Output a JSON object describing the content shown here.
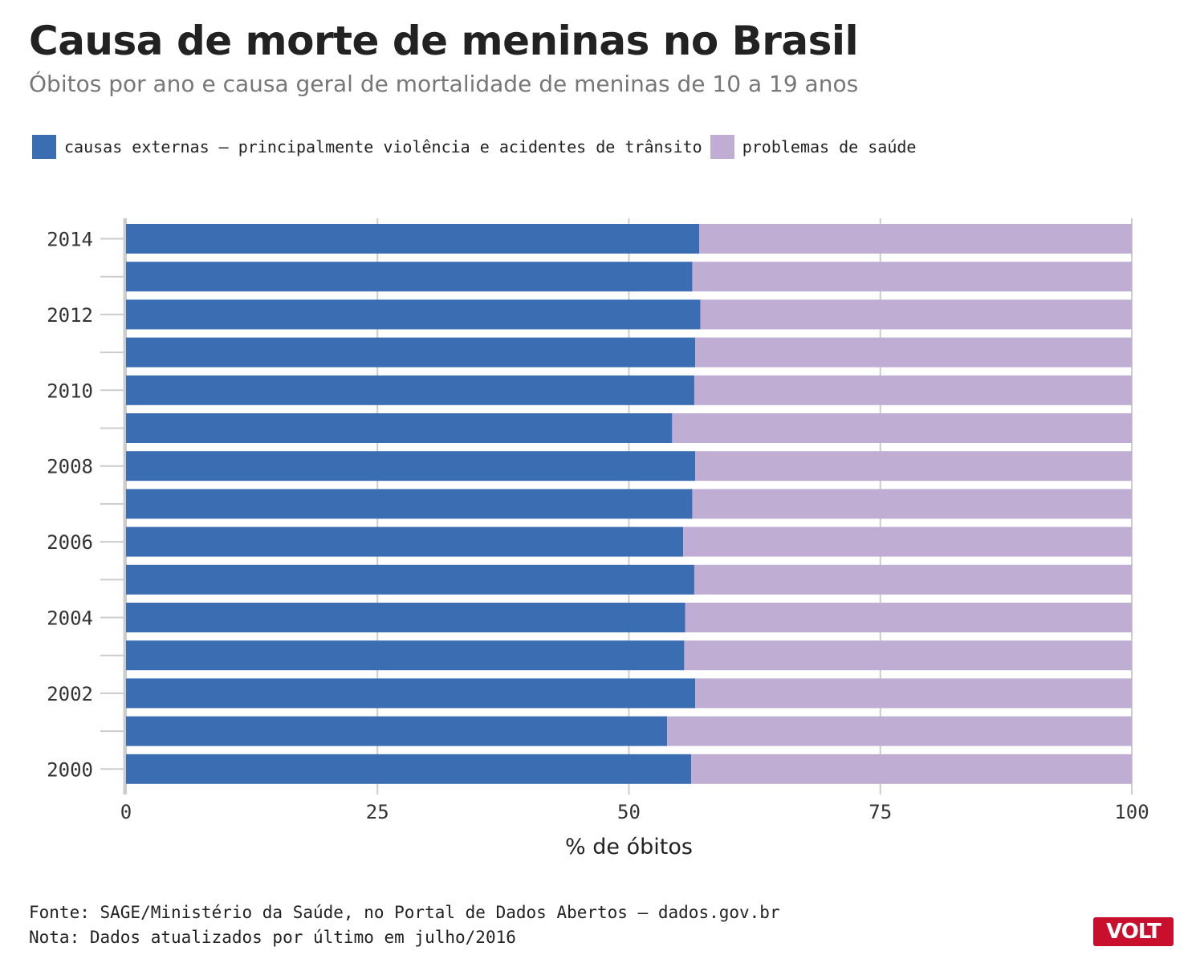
{
  "header": {
    "title": "Causa de morte de meninas no Brasil",
    "subtitle": "Óbitos por ano e causa geral de mortalidade de meninas de 10 a 19 anos"
  },
  "footer": {
    "source": "Fonte: SAGE/Ministério da Saúde, no Portal de Dados Abertos – dados.gov.br",
    "note": "Nota: Dados atualizados por último em julho/2016",
    "logo": "VOLT"
  },
  "colors": {
    "external": "#3a6db1",
    "health": "#bfadd4",
    "grid": "#cccccc"
  },
  "chart_data": {
    "type": "bar",
    "orientation": "horizontal",
    "stacked": true,
    "categories": [
      "2014",
      "2013",
      "2012",
      "2011",
      "2010",
      "2009",
      "2008",
      "2007",
      "2006",
      "2005",
      "2004",
      "2003",
      "2002",
      "2001",
      "2000"
    ],
    "y_tick_labels": [
      "2014",
      "",
      "2012",
      "",
      "2010",
      "",
      "2008",
      "",
      "2006",
      "",
      "2004",
      "",
      "2002",
      "",
      "2000"
    ],
    "series": [
      {
        "name": "causas externas – principalmente violência e acidentes de trânsito",
        "values": [
          57.0,
          56.3,
          57.1,
          56.6,
          56.5,
          54.3,
          56.6,
          56.3,
          55.4,
          56.5,
          55.6,
          55.5,
          56.6,
          53.8,
          56.2
        ]
      },
      {
        "name": "problemas de saúde",
        "values": [
          43.0,
          43.7,
          42.9,
          43.4,
          43.5,
          45.7,
          43.4,
          43.7,
          44.6,
          43.5,
          44.4,
          44.5,
          43.4,
          46.2,
          43.8
        ]
      }
    ],
    "xlabel": "% de óbitos",
    "ylabel": "",
    "xlim": [
      0,
      100
    ],
    "x_ticks": [
      0,
      25,
      50,
      75,
      100
    ],
    "grid": true,
    "legend": "top-left"
  }
}
